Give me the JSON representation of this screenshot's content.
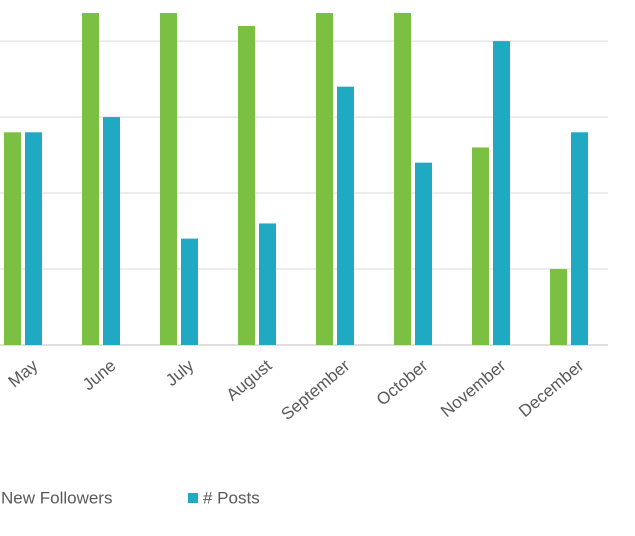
{
  "chart_data": {
    "type": "bar",
    "categories": [
      "May",
      "June",
      "July",
      "August",
      "September",
      "October",
      "November",
      "December"
    ],
    "series": [
      {
        "name": "New Followers",
        "color": "#7bc043",
        "values": [
          2.8,
          4.37,
          4.37,
          4.2,
          4.37,
          4.37,
          2.6,
          1.0
        ]
      },
      {
        "name": "# Posts",
        "color": "#20a9c3",
        "values": [
          2.8,
          3.0,
          1.4,
          1.6,
          3.4,
          2.4,
          4.0,
          2.8
        ]
      }
    ],
    "ylim": [
      0,
      4.37
    ],
    "yticks": [
      0,
      1,
      2,
      3,
      4
    ],
    "grid": true,
    "legend": "bottom"
  }
}
